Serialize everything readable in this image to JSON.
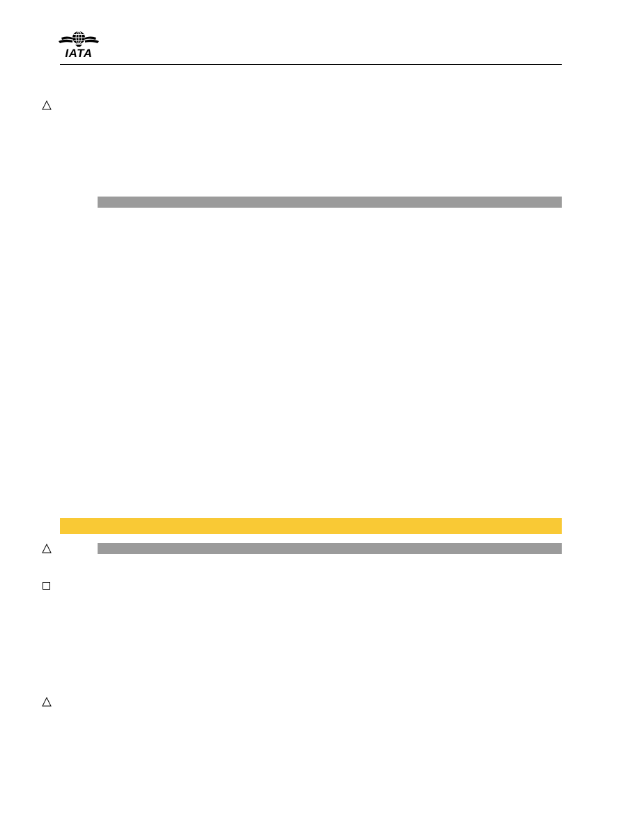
{
  "header": {
    "logo_text": "IATA",
    "logo_icon": "globe-wings-icon"
  },
  "markers": [
    {
      "shape": "triangle",
      "icon": "triangle-icon"
    },
    {
      "shape": "triangle",
      "icon": "triangle-icon"
    },
    {
      "shape": "square",
      "icon": "square-icon"
    },
    {
      "shape": "triangle",
      "icon": "triangle-icon"
    }
  ],
  "colors": {
    "rule": "#000000",
    "gray_bar": "#9b9b9b",
    "yellow_bar": "#f9c935",
    "marker_stroke": "#000000"
  }
}
